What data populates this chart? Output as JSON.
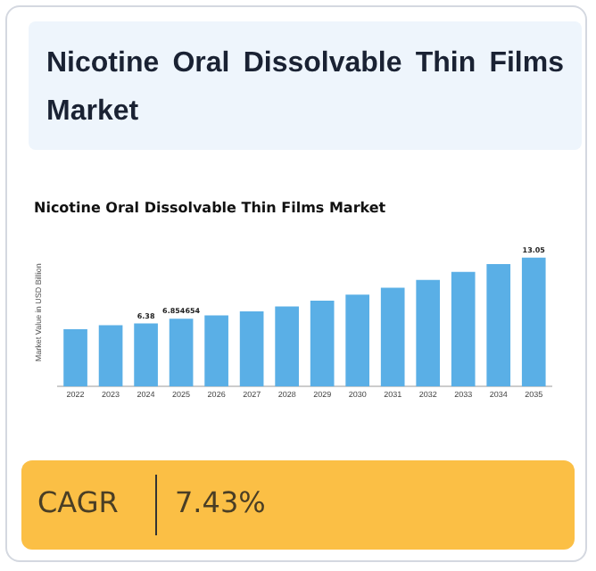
{
  "chart_data": {
    "type": "bar",
    "title": "Nicotine Oral Dissolvable Thin Films Market",
    "subtitle": "Nicotine Oral Dissolvable Thin Films Market",
    "ylabel": "Market Value in USD Billion",
    "categories": [
      "2022",
      "2023",
      "2024",
      "2025",
      "2026",
      "2027",
      "2028",
      "2029",
      "2030",
      "2031",
      "2032",
      "2033",
      "2034",
      "2035"
    ],
    "values": [
      5.8,
      6.2,
      6.38,
      6.854654,
      7.2,
      7.6,
      8.1,
      8.7,
      9.3,
      10.0,
      10.8,
      11.6,
      12.4,
      13.05
    ],
    "value_labels": [
      null,
      null,
      "6.38",
      "6.854654",
      null,
      null,
      null,
      null,
      null,
      null,
      null,
      null,
      null,
      "13.05"
    ],
    "color": "#5aafe6",
    "tick_labels": "x",
    "grid": false,
    "legend": false,
    "annotations": [
      "CAGR",
      "7.43%"
    ]
  }
}
